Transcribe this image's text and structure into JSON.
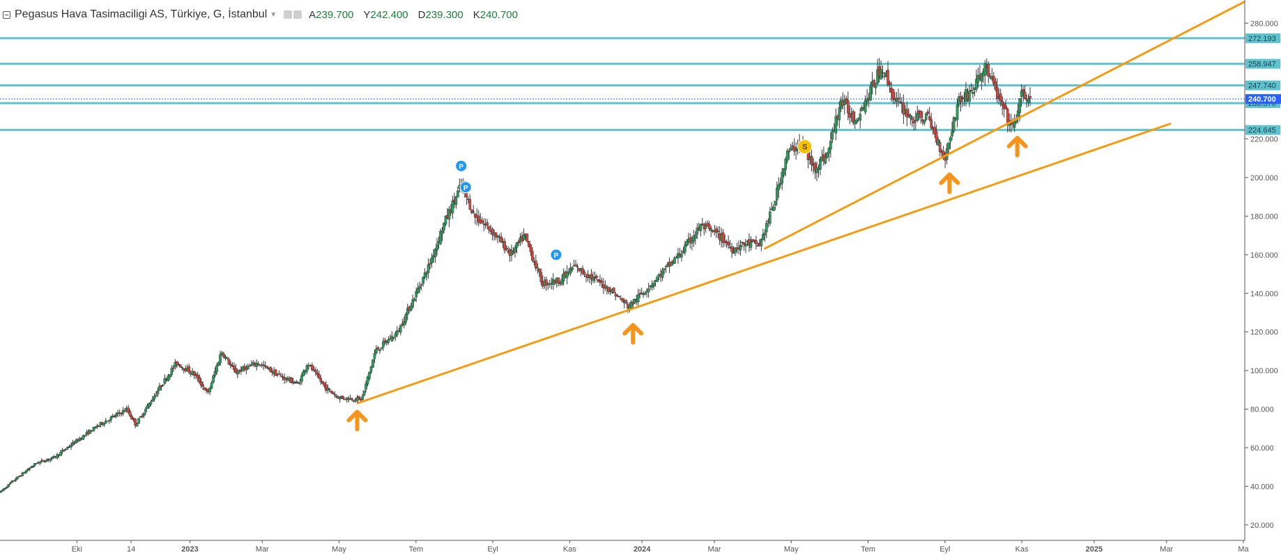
{
  "header": {
    "symbol_title": "Pegasus Hava Tasimaciligi AS, Türkiye, G, İstanbul",
    "dropdown_icon": "chevron-down-icon",
    "ohlc": [
      {
        "label": "A",
        "value": "239.700"
      },
      {
        "label": "Y",
        "value": "242.400"
      },
      {
        "label": "D",
        "value": "239.300"
      },
      {
        "label": "K",
        "value": "240.700"
      }
    ]
  },
  "colors": {
    "up": "#2e9b5d",
    "down": "#d2463f",
    "level": "#5fc3cf",
    "trend": "#f39c12",
    "arrow": "#f7941d",
    "last_price": "#2962ff",
    "marker_p": "#2196f3",
    "marker_s": "#f5c000"
  },
  "chart_data": {
    "type": "candlestick",
    "y_axis": {
      "range": [
        12,
        292
      ],
      "ticks": [
        "20.000",
        "40.000",
        "60.000",
        "80.000",
        "100.000",
        "120.000",
        "140.000",
        "160.000",
        "180.000",
        "200.000",
        "220.000",
        "240.000",
        "260.000",
        "280.000"
      ]
    },
    "x_axis": {
      "tick_labels": [
        {
          "label": "Eki",
          "t": 2022.75,
          "bold": false
        },
        {
          "label": "14",
          "t": 2022.87,
          "bold": false
        },
        {
          "label": "2023",
          "t": 2023.0,
          "bold": true
        },
        {
          "label": "Mar",
          "t": 2023.16,
          "bold": false
        },
        {
          "label": "May",
          "t": 2023.33,
          "bold": false
        },
        {
          "label": "Tem",
          "t": 2023.5,
          "bold": false
        },
        {
          "label": "Eyl",
          "t": 2023.67,
          "bold": false
        },
        {
          "label": "Kas",
          "t": 2023.84,
          "bold": false
        },
        {
          "label": "2024",
          "t": 2024.0,
          "bold": true
        },
        {
          "label": "Mar",
          "t": 2024.16,
          "bold": false
        },
        {
          "label": "May",
          "t": 2024.33,
          "bold": false
        },
        {
          "label": "Tem",
          "t": 2024.5,
          "bold": false
        },
        {
          "label": "Eyl",
          "t": 2024.67,
          "bold": false
        },
        {
          "label": "Kas",
          "t": 2024.84,
          "bold": false
        },
        {
          "label": "2025",
          "t": 2025.0,
          "bold": true
        },
        {
          "label": "Mar",
          "t": 2025.16,
          "bold": false
        },
        {
          "label": "Ma",
          "t": 2025.33,
          "bold": false
        }
      ]
    },
    "price_path": [
      {
        "t": 2022.58,
        "p": 37
      },
      {
        "t": 2022.61,
        "p": 43
      },
      {
        "t": 2022.66,
        "p": 52
      },
      {
        "t": 2022.7,
        "p": 55
      },
      {
        "t": 2022.74,
        "p": 62
      },
      {
        "t": 2022.8,
        "p": 72
      },
      {
        "t": 2022.86,
        "p": 80
      },
      {
        "t": 2022.88,
        "p": 72
      },
      {
        "t": 2022.93,
        "p": 90
      },
      {
        "t": 2022.97,
        "p": 104
      },
      {
        "t": 2023.01,
        "p": 98
      },
      {
        "t": 2023.04,
        "p": 88
      },
      {
        "t": 2023.07,
        "p": 110
      },
      {
        "t": 2023.1,
        "p": 99
      },
      {
        "t": 2023.15,
        "p": 104
      },
      {
        "t": 2023.2,
        "p": 97
      },
      {
        "t": 2023.24,
        "p": 93
      },
      {
        "t": 2023.26,
        "p": 104
      },
      {
        "t": 2023.3,
        "p": 91
      },
      {
        "t": 2023.33,
        "p": 86
      },
      {
        "t": 2023.38,
        "p": 85
      },
      {
        "t": 2023.41,
        "p": 110
      },
      {
        "t": 2023.46,
        "p": 120
      },
      {
        "t": 2023.5,
        "p": 140
      },
      {
        "t": 2023.53,
        "p": 155
      },
      {
        "t": 2023.56,
        "p": 175
      },
      {
        "t": 2023.6,
        "p": 196
      },
      {
        "t": 2023.63,
        "p": 180
      },
      {
        "t": 2023.67,
        "p": 172
      },
      {
        "t": 2023.71,
        "p": 160
      },
      {
        "t": 2023.74,
        "p": 170
      },
      {
        "t": 2023.78,
        "p": 145
      },
      {
        "t": 2023.82,
        "p": 147
      },
      {
        "t": 2023.85,
        "p": 154
      },
      {
        "t": 2023.89,
        "p": 148
      },
      {
        "t": 2023.93,
        "p": 142
      },
      {
        "t": 2023.97,
        "p": 133
      },
      {
        "t": 2024.0,
        "p": 140
      },
      {
        "t": 2024.05,
        "p": 152
      },
      {
        "t": 2024.09,
        "p": 162
      },
      {
        "t": 2024.13,
        "p": 175
      },
      {
        "t": 2024.17,
        "p": 170
      },
      {
        "t": 2024.2,
        "p": 163
      },
      {
        "t": 2024.23,
        "p": 166
      },
      {
        "t": 2024.26,
        "p": 165
      },
      {
        "t": 2024.29,
        "p": 185
      },
      {
        "t": 2024.32,
        "p": 212
      },
      {
        "t": 2024.35,
        "p": 218
      },
      {
        "t": 2024.38,
        "p": 205
      },
      {
        "t": 2024.41,
        "p": 212
      },
      {
        "t": 2024.44,
        "p": 240
      },
      {
        "t": 2024.47,
        "p": 230
      },
      {
        "t": 2024.5,
        "p": 242
      },
      {
        "t": 2024.53,
        "p": 258
      },
      {
        "t": 2024.56,
        "p": 240
      },
      {
        "t": 2024.6,
        "p": 230
      },
      {
        "t": 2024.63,
        "p": 232
      },
      {
        "t": 2024.67,
        "p": 210
      },
      {
        "t": 2024.7,
        "p": 240
      },
      {
        "t": 2024.73,
        "p": 245
      },
      {
        "t": 2024.76,
        "p": 258
      },
      {
        "t": 2024.79,
        "p": 240
      },
      {
        "t": 2024.82,
        "p": 225
      },
      {
        "t": 2024.84,
        "p": 243
      },
      {
        "t": 2024.86,
        "p": 240.7
      }
    ],
    "horizontal_levels": [
      {
        "label": "272.193",
        "value": 272.193
      },
      {
        "label": "258.947",
        "value": 258.947
      },
      {
        "label": "247.740",
        "value": 247.74
      },
      {
        "label": "238.570",
        "value": 238.57
      },
      {
        "label": "224.645",
        "value": 224.645
      }
    ],
    "last_price": {
      "label": "240.700",
      "value": 240.7
    },
    "trend_lines": [
      {
        "from": {
          "t": 2023.37,
          "p": 83
        },
        "to": {
          "t": 2025.17,
          "p": 228
        }
      },
      {
        "from": {
          "t": 2024.27,
          "p": 163
        },
        "to": {
          "t": 2025.34,
          "p": 292
        }
      }
    ],
    "up_arrows": [
      {
        "t": 2023.37,
        "p": 80
      },
      {
        "t": 2023.98,
        "p": 125
      },
      {
        "t": 2024.68,
        "p": 203
      },
      {
        "t": 2024.83,
        "p": 222
      }
    ],
    "markers": [
      {
        "text": "P",
        "t": 2023.6,
        "p": 206,
        "kind": "p"
      },
      {
        "text": "P",
        "t": 2023.61,
        "p": 195,
        "kind": "p"
      },
      {
        "text": "P",
        "t": 2023.81,
        "p": 160,
        "kind": "p"
      },
      {
        "text": "S",
        "t": 2024.36,
        "p": 216,
        "kind": "s"
      }
    ]
  }
}
